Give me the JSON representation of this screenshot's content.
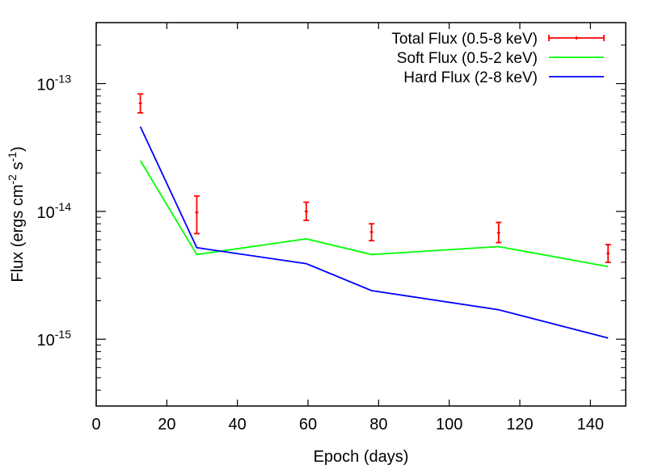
{
  "chart_data": {
    "type": "line",
    "xlabel": "Epoch (days)",
    "ylabel": "Flux (ergs cm",
    "ylabel_parts": {
      "sup1": "-2",
      "mid": " s",
      "sup2": "-1",
      "end": ")"
    },
    "xlim": [
      0,
      150
    ],
    "ylim": [
      3e-16,
      3e-13
    ],
    "yscale": "log",
    "x_ticks": [
      0,
      20,
      40,
      60,
      80,
      100,
      120,
      140
    ],
    "x_tick_labels": [
      "0",
      "20",
      "40",
      "60",
      "80",
      "100",
      "120",
      "140"
    ],
    "y_ticks": [
      {
        "value": 1e-15,
        "base": "10",
        "exp": "-15"
      },
      {
        "value": 1e-14,
        "base": "10",
        "exp": "-14"
      },
      {
        "value": 1e-13,
        "base": "10",
        "exp": "-13"
      }
    ],
    "grid": false,
    "legend_position": "top-right",
    "series": [
      {
        "name": "Total Flux (0.5-8 keV)",
        "style": "errorbar",
        "color": "#ff0000",
        "x": [
          12.5,
          28.5,
          59.5,
          78,
          114,
          145
        ],
        "y": [
          7e-14,
          9.8e-15,
          1e-14,
          6.9e-15,
          6.8e-15,
          4.7e-15
        ],
        "y_low": [
          5.9e-14,
          6.7e-15,
          8.5e-15,
          5.9e-15,
          5.7e-15,
          4e-15
        ],
        "y_high": [
          8.3e-14,
          1.32e-14,
          1.18e-14,
          8e-15,
          8.2e-15,
          5.5e-15
        ]
      },
      {
        "name": "Soft Flux (0.5-2 keV)",
        "style": "line",
        "color": "#00ff00",
        "x": [
          12.5,
          28.5,
          59.5,
          78,
          114,
          145
        ],
        "y": [
          2.5e-14,
          4.6e-15,
          6.1e-15,
          4.6e-15,
          5.3e-15,
          3.7e-15
        ]
      },
      {
        "name": "Hard Flux (2-8 keV)",
        "style": "line",
        "color": "#0000ff",
        "x": [
          12.5,
          28.5,
          59.5,
          78,
          114,
          145
        ],
        "y": [
          4.6e-14,
          5.2e-15,
          3.9e-15,
          2.4e-15,
          1.7e-15,
          1.02e-15
        ]
      }
    ]
  }
}
